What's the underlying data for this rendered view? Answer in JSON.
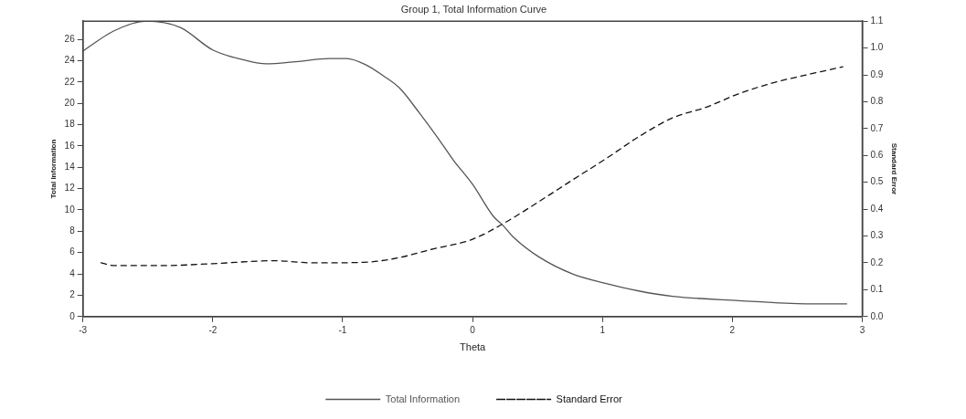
{
  "chart_data": {
    "type": "line",
    "title": "Group 1, Total Information Curve",
    "xlabel": "Theta",
    "ylabel": "Total Information",
    "y2label": "Standard Error",
    "xlim": [
      -3,
      3
    ],
    "xticks": [
      -3,
      -2,
      -1,
      0,
      1,
      2,
      3
    ],
    "ylim": [
      0,
      27.7
    ],
    "yticks": [
      0,
      2,
      4,
      6,
      8,
      10,
      12,
      14,
      16,
      18,
      20,
      22,
      24,
      26
    ],
    "y2lim": [
      0,
      1.1
    ],
    "y2ticks": [
      {
        "value": 0,
        "label": "0.0"
      },
      0.1,
      0.2,
      0.3,
      0.4,
      0.5,
      0.6,
      0.7,
      0.8,
      0.9,
      {
        "value": 1,
        "label": "1.0"
      },
      1.1
    ],
    "grid": false,
    "legend": "bottom",
    "marker": "none",
    "series": [
      {
        "name": "Total Information",
        "color": "#555555",
        "line_style": "solid",
        "x": [
          -3,
          -2.76,
          -2.51,
          -2.25,
          -2.0,
          -1.74,
          -1.59,
          -1.36,
          -1.1,
          -0.97,
          -0.82,
          -0.69,
          -0.56,
          -0.41,
          -0.27,
          -0.15,
          0.0,
          0.16,
          0.23,
          0.31,
          0.51,
          0.77,
          1.03,
          1.28,
          1.54,
          2.05,
          2.57,
          2.88
        ],
        "values": [
          24.9,
          26.8,
          27.7,
          27.1,
          25.0,
          24.0,
          23.7,
          23.9,
          24.2,
          24.2,
          23.6,
          22.6,
          21.4,
          19.1,
          16.8,
          14.7,
          12.4,
          9.4,
          8.6,
          7.5,
          5.6,
          4.0,
          3.1,
          2.4,
          1.9,
          1.5,
          1.2,
          1.2
        ]
      },
      {
        "name": "Standard Error",
        "color": "#111111",
        "line_style": "dashed",
        "axis": "y2",
        "x": [
          -2.86,
          -2.76,
          -2.38,
          -2.0,
          -1.53,
          -1.22,
          -0.84,
          -0.58,
          -0.32,
          0.0,
          0.26,
          0.51,
          0.77,
          1.03,
          1.28,
          1.54,
          1.8,
          2.05,
          2.31,
          2.57,
          2.85
        ],
        "values": [
          0.2,
          0.19,
          0.19,
          0.197,
          0.208,
          0.2,
          0.202,
          0.218,
          0.25,
          0.288,
          0.353,
          0.428,
          0.509,
          0.589,
          0.67,
          0.74,
          0.78,
          0.83,
          0.87,
          0.9,
          0.93
        ]
      }
    ]
  }
}
